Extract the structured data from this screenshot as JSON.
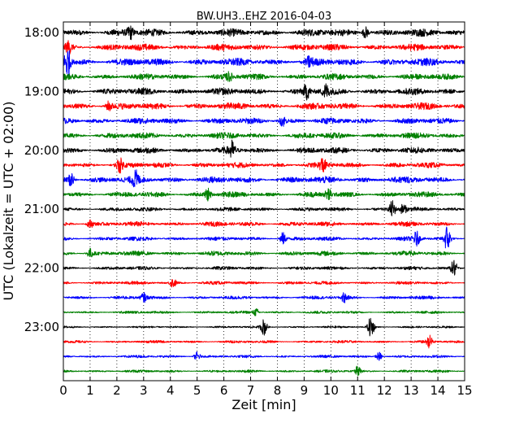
{
  "chart_data": {
    "type": "line",
    "title": "BW.UH3..EHZ 2016-04-03",
    "xlabel": "Zeit  [min]",
    "ylabel": "UTC (Lokalzeit = UTC + 02:00)",
    "xlim": [
      0,
      15
    ],
    "x_ticks": [
      "0",
      "1",
      "2",
      "3",
      "4",
      "5",
      "6",
      "7",
      "8",
      "9",
      "10",
      "11",
      "12",
      "13",
      "14",
      "15"
    ],
    "y_ticks": [
      "18:00",
      "19:00",
      "20:00",
      "21:00",
      "22:00",
      "23:00"
    ],
    "grid": "vertical-dotted",
    "trace_interval_min": 15,
    "trace_colors": [
      "#000000",
      "#ff0000",
      "#0000ff",
      "#008000"
    ],
    "traces": [
      {
        "start": "18:00",
        "amplitude": 0.55,
        "events": [
          {
            "t": 2.5,
            "a": 0.8
          },
          {
            "t": 11.3,
            "a": 0.8
          }
        ]
      },
      {
        "start": "18:15",
        "amplitude": 0.5,
        "events": [
          {
            "t": 0.2,
            "a": 0.7
          }
        ]
      },
      {
        "start": "18:30",
        "amplitude": 0.55,
        "events": [
          {
            "t": 0.15,
            "a": 2.2
          },
          {
            "t": 9.2,
            "a": 0.6
          }
        ]
      },
      {
        "start": "18:45",
        "amplitude": 0.45,
        "events": [
          {
            "t": 6.2,
            "a": 0.5
          }
        ]
      },
      {
        "start": "19:00",
        "amplitude": 0.5,
        "events": [
          {
            "t": 9.1,
            "a": 0.9
          },
          {
            "t": 9.8,
            "a": 0.9
          }
        ]
      },
      {
        "start": "19:15",
        "amplitude": 0.5,
        "events": [
          {
            "t": 1.7,
            "a": 0.6
          }
        ]
      },
      {
        "start": "19:30",
        "amplitude": 0.45,
        "events": [
          {
            "t": 8.2,
            "a": 0.7
          }
        ]
      },
      {
        "start": "19:45",
        "amplitude": 0.45,
        "events": []
      },
      {
        "start": "20:00",
        "amplitude": 0.45,
        "events": [
          {
            "t": 6.3,
            "a": 1.1
          }
        ]
      },
      {
        "start": "20:15",
        "amplitude": 0.4,
        "events": [
          {
            "t": 2.1,
            "a": 0.9
          },
          {
            "t": 9.7,
            "a": 0.9
          }
        ]
      },
      {
        "start": "20:30",
        "amplitude": 0.5,
        "events": [
          {
            "t": 0.3,
            "a": 1.0
          },
          {
            "t": 2.7,
            "a": 1.0
          }
        ]
      },
      {
        "start": "20:45",
        "amplitude": 0.4,
        "events": [
          {
            "t": 5.4,
            "a": 0.8
          },
          {
            "t": 9.9,
            "a": 0.8
          }
        ]
      },
      {
        "start": "21:00",
        "amplitude": 0.3,
        "events": [
          {
            "t": 12.3,
            "a": 1.2
          },
          {
            "t": 12.7,
            "a": 0.7
          }
        ]
      },
      {
        "start": "21:15",
        "amplitude": 0.35,
        "events": [
          {
            "t": 1.0,
            "a": 0.5
          }
        ]
      },
      {
        "start": "21:30",
        "amplitude": 0.3,
        "events": [
          {
            "t": 8.2,
            "a": 0.8
          },
          {
            "t": 13.2,
            "a": 0.9
          },
          {
            "t": 14.35,
            "a": 1.8
          }
        ]
      },
      {
        "start": "21:45",
        "amplitude": 0.35,
        "events": [
          {
            "t": 1.0,
            "a": 0.6
          }
        ]
      },
      {
        "start": "22:00",
        "amplitude": 0.25,
        "events": [
          {
            "t": 14.6,
            "a": 1.1
          }
        ]
      },
      {
        "start": "22:15",
        "amplitude": 0.25,
        "events": [
          {
            "t": 4.1,
            "a": 0.6
          }
        ]
      },
      {
        "start": "22:30",
        "amplitude": 0.25,
        "events": [
          {
            "t": 3.0,
            "a": 0.6
          },
          {
            "t": 10.5,
            "a": 0.6
          }
        ]
      },
      {
        "start": "22:45",
        "amplitude": 0.2,
        "events": [
          {
            "t": 7.2,
            "a": 0.5
          }
        ]
      },
      {
        "start": "23:00",
        "amplitude": 0.15,
        "events": [
          {
            "t": 7.5,
            "a": 1.1
          },
          {
            "t": 11.5,
            "a": 1.5
          }
        ]
      },
      {
        "start": "23:15",
        "amplitude": 0.2,
        "events": [
          {
            "t": 13.7,
            "a": 0.8
          }
        ]
      },
      {
        "start": "23:30",
        "amplitude": 0.2,
        "events": [
          {
            "t": 5.0,
            "a": 0.6
          },
          {
            "t": 11.8,
            "a": 0.6
          }
        ]
      },
      {
        "start": "23:45",
        "amplitude": 0.2,
        "events": [
          {
            "t": 11.0,
            "a": 0.6
          }
        ]
      }
    ]
  }
}
